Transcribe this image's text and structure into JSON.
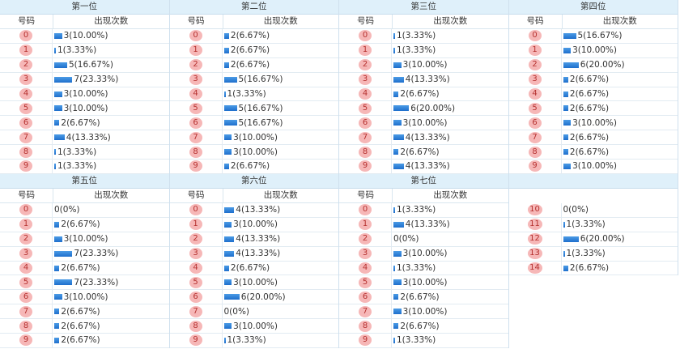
{
  "header": {
    "number_col": "号码",
    "count_col": "出现次数"
  },
  "panels": [
    {
      "title": "第一位",
      "rows": [
        {
          "n": "0",
          "v": 3,
          "label": "3(10.00%)"
        },
        {
          "n": "1",
          "v": 1,
          "label": "1(3.33%)"
        },
        {
          "n": "2",
          "v": 5,
          "label": "5(16.67%)"
        },
        {
          "n": "3",
          "v": 7,
          "label": "7(23.33%)"
        },
        {
          "n": "4",
          "v": 3,
          "label": "3(10.00%)"
        },
        {
          "n": "5",
          "v": 3,
          "label": "3(10.00%)"
        },
        {
          "n": "6",
          "v": 2,
          "label": "2(6.67%)"
        },
        {
          "n": "7",
          "v": 4,
          "label": "4(13.33%)"
        },
        {
          "n": "8",
          "v": 1,
          "label": "1(3.33%)"
        },
        {
          "n": "9",
          "v": 1,
          "label": "1(3.33%)"
        }
      ]
    },
    {
      "title": "第二位",
      "rows": [
        {
          "n": "0",
          "v": 2,
          "label": "2(6.67%)"
        },
        {
          "n": "1",
          "v": 2,
          "label": "2(6.67%)"
        },
        {
          "n": "2",
          "v": 2,
          "label": "2(6.67%)"
        },
        {
          "n": "3",
          "v": 5,
          "label": "5(16.67%)"
        },
        {
          "n": "4",
          "v": 1,
          "label": "1(3.33%)"
        },
        {
          "n": "5",
          "v": 5,
          "label": "5(16.67%)"
        },
        {
          "n": "6",
          "v": 5,
          "label": "5(16.67%)"
        },
        {
          "n": "7",
          "v": 3,
          "label": "3(10.00%)"
        },
        {
          "n": "8",
          "v": 3,
          "label": "3(10.00%)"
        },
        {
          "n": "9",
          "v": 2,
          "label": "2(6.67%)"
        }
      ]
    },
    {
      "title": "第三位",
      "rows": [
        {
          "n": "0",
          "v": 1,
          "label": "1(3.33%)"
        },
        {
          "n": "1",
          "v": 1,
          "label": "1(3.33%)"
        },
        {
          "n": "2",
          "v": 3,
          "label": "3(10.00%)"
        },
        {
          "n": "3",
          "v": 4,
          "label": "4(13.33%)"
        },
        {
          "n": "4",
          "v": 2,
          "label": "2(6.67%)"
        },
        {
          "n": "5",
          "v": 6,
          "label": "6(20.00%)"
        },
        {
          "n": "6",
          "v": 3,
          "label": "3(10.00%)"
        },
        {
          "n": "7",
          "v": 4,
          "label": "4(13.33%)"
        },
        {
          "n": "8",
          "v": 2,
          "label": "2(6.67%)"
        },
        {
          "n": "9",
          "v": 4,
          "label": "4(13.33%)"
        }
      ]
    },
    {
      "title": "第四位",
      "rows": [
        {
          "n": "0",
          "v": 5,
          "label": "5(16.67%)"
        },
        {
          "n": "1",
          "v": 3,
          "label": "3(10.00%)"
        },
        {
          "n": "2",
          "v": 6,
          "label": "6(20.00%)"
        },
        {
          "n": "3",
          "v": 2,
          "label": "2(6.67%)"
        },
        {
          "n": "4",
          "v": 2,
          "label": "2(6.67%)"
        },
        {
          "n": "5",
          "v": 2,
          "label": "2(6.67%)"
        },
        {
          "n": "6",
          "v": 3,
          "label": "3(10.00%)"
        },
        {
          "n": "7",
          "v": 2,
          "label": "2(6.67%)"
        },
        {
          "n": "8",
          "v": 2,
          "label": "2(6.67%)"
        },
        {
          "n": "9",
          "v": 3,
          "label": "3(10.00%)"
        }
      ]
    },
    {
      "title": "第五位",
      "rows": [
        {
          "n": "0",
          "v": 0,
          "label": "0(0%)"
        },
        {
          "n": "1",
          "v": 2,
          "label": "2(6.67%)"
        },
        {
          "n": "2",
          "v": 3,
          "label": "3(10.00%)"
        },
        {
          "n": "3",
          "v": 7,
          "label": "7(23.33%)"
        },
        {
          "n": "4",
          "v": 2,
          "label": "2(6.67%)"
        },
        {
          "n": "5",
          "v": 7,
          "label": "7(23.33%)"
        },
        {
          "n": "6",
          "v": 3,
          "label": "3(10.00%)"
        },
        {
          "n": "7",
          "v": 2,
          "label": "2(6.67%)"
        },
        {
          "n": "8",
          "v": 2,
          "label": "2(6.67%)"
        },
        {
          "n": "9",
          "v": 2,
          "label": "2(6.67%)"
        }
      ]
    },
    {
      "title": "第六位",
      "rows": [
        {
          "n": "0",
          "v": 4,
          "label": "4(13.33%)"
        },
        {
          "n": "1",
          "v": 3,
          "label": "3(10.00%)"
        },
        {
          "n": "2",
          "v": 4,
          "label": "4(13.33%)"
        },
        {
          "n": "3",
          "v": 4,
          "label": "4(13.33%)"
        },
        {
          "n": "4",
          "v": 2,
          "label": "2(6.67%)"
        },
        {
          "n": "5",
          "v": 3,
          "label": "3(10.00%)"
        },
        {
          "n": "6",
          "v": 6,
          "label": "6(20.00%)"
        },
        {
          "n": "7",
          "v": 0,
          "label": "0(0%)"
        },
        {
          "n": "8",
          "v": 3,
          "label": "3(10.00%)"
        },
        {
          "n": "9",
          "v": 1,
          "label": "1(3.33%)"
        }
      ]
    },
    {
      "title": "第七位",
      "rows": [
        {
          "n": "0",
          "v": 1,
          "label": "1(3.33%)"
        },
        {
          "n": "1",
          "v": 4,
          "label": "4(13.33%)"
        },
        {
          "n": "2",
          "v": 0,
          "label": "0(0%)"
        },
        {
          "n": "3",
          "v": 3,
          "label": "3(10.00%)"
        },
        {
          "n": "4",
          "v": 1,
          "label": "1(3.33%)"
        },
        {
          "n": "5",
          "v": 3,
          "label": "3(10.00%)"
        },
        {
          "n": "6",
          "v": 2,
          "label": "2(6.67%)"
        },
        {
          "n": "7",
          "v": 3,
          "label": "3(10.00%)"
        },
        {
          "n": "8",
          "v": 2,
          "label": "2(6.67%)"
        },
        {
          "n": "9",
          "v": 1,
          "label": "1(3.33%)"
        }
      ]
    },
    {
      "title": "",
      "rows": [
        {
          "n": "10",
          "v": 0,
          "label": "0(0%)"
        },
        {
          "n": "11",
          "v": 1,
          "label": "1(3.33%)"
        },
        {
          "n": "12",
          "v": 6,
          "label": "6(20.00%)"
        },
        {
          "n": "13",
          "v": 1,
          "label": "1(3.33%)"
        },
        {
          "n": "14",
          "v": 2,
          "label": "2(6.67%)"
        }
      ]
    }
  ],
  "colors": {
    "bar": "#1e6fcc",
    "ball": "#f6b7b7",
    "ball_text": "#b5312f",
    "title_bg": "#dff0fa"
  }
}
